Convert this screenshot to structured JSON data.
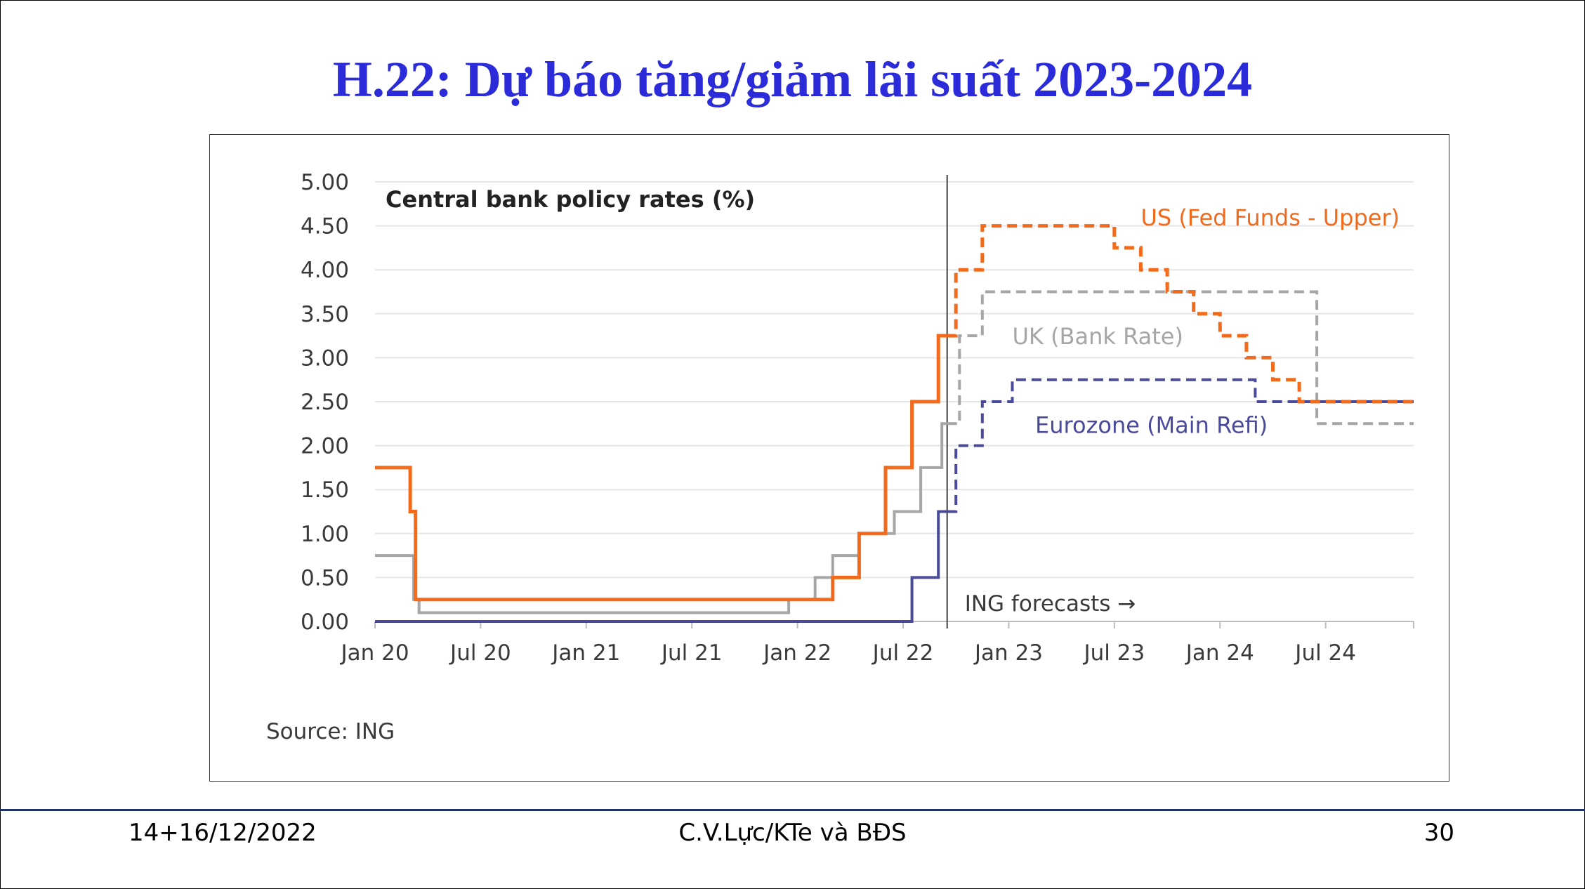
{
  "slide": {
    "title": "H.22: Dự báo tăng/giảm lãi suất 2023-2024",
    "footer_left": "14+16/12/2022",
    "footer_center": "C.V.Lực/KTe và BĐS",
    "footer_right": "30"
  },
  "colors": {
    "us": "#f26a1b",
    "uk": "#a6a6a6",
    "ez": "#4a4a9c",
    "title": "#2b2bd9"
  },
  "chart_data": {
    "type": "line",
    "title": "Central bank policy rates (%)",
    "source": "Source: ING",
    "forecast_label": "ING forecasts →",
    "forecast_start": 32.5,
    "ylim": [
      0,
      5
    ],
    "yticks": [
      "0.00",
      "0.50",
      "1.00",
      "1.50",
      "2.00",
      "2.50",
      "3.00",
      "3.50",
      "4.00",
      "4.50",
      "5.00"
    ],
    "xlim": [
      0,
      59
    ],
    "xticks": [
      {
        "label": "Jan 20",
        "m": 0
      },
      {
        "label": "Jul 20",
        "m": 6
      },
      {
        "label": "Jan 21",
        "m": 12
      },
      {
        "label": "Jul 21",
        "m": 18
      },
      {
        "label": "Jan 22",
        "m": 24
      },
      {
        "label": "Jul 22",
        "m": 30
      },
      {
        "label": "Jan 23",
        "m": 36
      },
      {
        "label": "Jul 23",
        "m": 42
      },
      {
        "label": "Jan 24",
        "m": 48
      },
      {
        "label": "Jul 24",
        "m": 54
      }
    ],
    "series": [
      {
        "key": "uk",
        "name": "UK (Bank Rate)",
        "width": 4,
        "actual": [
          [
            0,
            0.75
          ],
          [
            2.2,
            0.75
          ],
          [
            2.2,
            0.25
          ],
          [
            2.5,
            0.25
          ],
          [
            2.5,
            0.1
          ],
          [
            23.5,
            0.1
          ],
          [
            23.5,
            0.25
          ],
          [
            25,
            0.25
          ],
          [
            25,
            0.5
          ],
          [
            26,
            0.5
          ],
          [
            26,
            0.75
          ],
          [
            27.5,
            0.75
          ],
          [
            27.5,
            1.0
          ],
          [
            29.5,
            1.0
          ],
          [
            29.5,
            1.25
          ],
          [
            31,
            1.25
          ],
          [
            31,
            1.75
          ],
          [
            32.2,
            1.75
          ],
          [
            32.2,
            2.25
          ],
          [
            32.5,
            2.25
          ]
        ],
        "forecast": [
          [
            32.5,
            2.25
          ],
          [
            33.2,
            2.25
          ],
          [
            33.2,
            3.25
          ],
          [
            34.5,
            3.25
          ],
          [
            34.5,
            3.75
          ],
          [
            53.5,
            3.75
          ],
          [
            53.5,
            2.25
          ],
          [
            59,
            2.25
          ]
        ],
        "label_x": 36.2,
        "label_y": 3.25
      },
      {
        "key": "ez",
        "name": "Eurozone (Main Refi)",
        "width": 4,
        "actual": [
          [
            0,
            0
          ],
          [
            30.5,
            0
          ],
          [
            30.5,
            0.5
          ],
          [
            32,
            0.5
          ],
          [
            32,
            1.25
          ],
          [
            32.5,
            1.25
          ]
        ],
        "forecast": [
          [
            32.5,
            1.25
          ],
          [
            33,
            1.25
          ],
          [
            33,
            2.0
          ],
          [
            34.5,
            2.0
          ],
          [
            34.5,
            2.5
          ],
          [
            36.2,
            2.5
          ],
          [
            36.2,
            2.75
          ],
          [
            50,
            2.75
          ],
          [
            50,
            2.5
          ],
          [
            59,
            2.5
          ]
        ],
        "label_x": 37.5,
        "label_y": 2.24
      },
      {
        "key": "us",
        "name": "US (Fed Funds - Upper)",
        "width": 5,
        "actual": [
          [
            0,
            1.75
          ],
          [
            2,
            1.75
          ],
          [
            2,
            1.25
          ],
          [
            2.3,
            1.25
          ],
          [
            2.3,
            0.25
          ],
          [
            26,
            0.25
          ],
          [
            26,
            0.5
          ],
          [
            27.5,
            0.5
          ],
          [
            27.5,
            1.0
          ],
          [
            29,
            1.0
          ],
          [
            29,
            1.75
          ],
          [
            30.5,
            1.75
          ],
          [
            30.5,
            2.5
          ],
          [
            32,
            2.5
          ],
          [
            32,
            3.25
          ],
          [
            32.5,
            3.25
          ]
        ],
        "forecast": [
          [
            32.5,
            3.25
          ],
          [
            33,
            3.25
          ],
          [
            33,
            4.0
          ],
          [
            34.5,
            4.0
          ],
          [
            34.5,
            4.5
          ],
          [
            42,
            4.5
          ],
          [
            42,
            4.25
          ],
          [
            43.5,
            4.25
          ],
          [
            43.5,
            4.0
          ],
          [
            45,
            4.0
          ],
          [
            45,
            3.75
          ],
          [
            46.5,
            3.75
          ],
          [
            46.5,
            3.5
          ],
          [
            48,
            3.5
          ],
          [
            48,
            3.25
          ],
          [
            49.5,
            3.25
          ],
          [
            49.5,
            3.0
          ],
          [
            51,
            3.0
          ],
          [
            51,
            2.75
          ],
          [
            52.5,
            2.75
          ],
          [
            52.5,
            2.5
          ],
          [
            59,
            2.5
          ]
        ],
        "label_x": 43.5,
        "label_y": 4.6
      }
    ]
  }
}
